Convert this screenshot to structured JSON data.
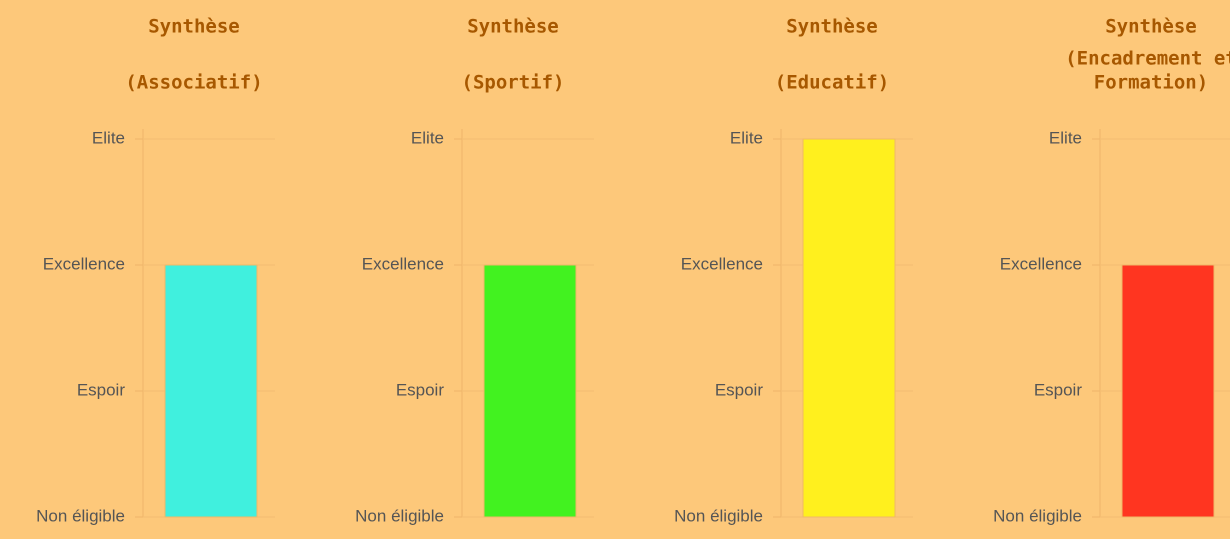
{
  "chart_data": [
    {
      "type": "bar",
      "title": [
        "Synthèse",
        "(Associatif)"
      ],
      "categories": [
        null
      ],
      "values": [
        2
      ],
      "color": "#40f0de",
      "ylim": [
        0,
        3
      ],
      "yticks": [
        {
          "value": 0,
          "label": "Non éligible"
        },
        {
          "value": 1,
          "label": "Espoir"
        },
        {
          "value": 2,
          "label": "Excellence"
        },
        {
          "value": 3,
          "label": "Elite"
        }
      ],
      "grid": true
    },
    {
      "type": "bar",
      "title": [
        "Synthèse",
        "(Sportif)"
      ],
      "categories": [
        null
      ],
      "values": [
        2
      ],
      "color": "#42f220",
      "ylim": [
        0,
        3
      ],
      "yticks": [
        {
          "value": 0,
          "label": "Non éligible"
        },
        {
          "value": 1,
          "label": "Espoir"
        },
        {
          "value": 2,
          "label": "Excellence"
        },
        {
          "value": 3,
          "label": "Elite"
        }
      ],
      "grid": true
    },
    {
      "type": "bar",
      "title": [
        "Synthèse",
        "(Educatif)"
      ],
      "categories": [
        null
      ],
      "values": [
        3
      ],
      "color": "#fff01e",
      "ylim": [
        0,
        3
      ],
      "yticks": [
        {
          "value": 0,
          "label": "Non éligible"
        },
        {
          "value": 1,
          "label": "Espoir"
        },
        {
          "value": 2,
          "label": "Excellence"
        },
        {
          "value": 3,
          "label": "Elite"
        }
      ],
      "grid": true
    },
    {
      "type": "bar",
      "title": [
        "Synthèse",
        "(Encadrement et",
        "Formation)"
      ],
      "categories": [
        null
      ],
      "values": [
        2
      ],
      "color": "#ff3520",
      "ylim": [
        0,
        3
      ],
      "yticks": [
        {
          "value": 0,
          "label": "Non éligible"
        },
        {
          "value": 1,
          "label": "Espoir"
        },
        {
          "value": 2,
          "label": "Excellence"
        },
        {
          "value": 3,
          "label": "Elite"
        }
      ],
      "grid": true
    }
  ]
}
